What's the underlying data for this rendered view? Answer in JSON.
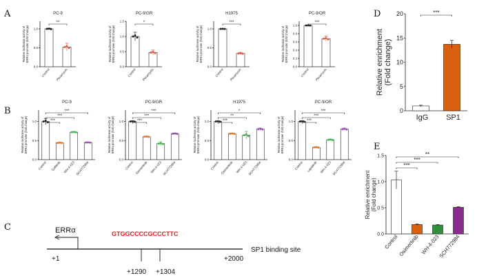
{
  "panel_labels": {
    "a": "A",
    "b": "B",
    "c": "C",
    "d": "D",
    "e": "E"
  },
  "chart_data": [
    {
      "id": "A1",
      "type": "bar",
      "title": "PC-9",
      "ylabel": [
        "Relative luciferase activity of",
        "ERRα promoter (fold change)"
      ],
      "ylim": [
        0,
        1.2
      ],
      "yticks": [
        "0.0",
        "0.5",
        "1.0"
      ],
      "categories": [
        "Control",
        "Plicamycin"
      ],
      "values": [
        1.0,
        0.52
      ],
      "errors": [
        0.02,
        0.1
      ],
      "colors": [
        "#222222",
        "#e05a4a"
      ],
      "sig": [
        "**"
      ]
    },
    {
      "id": "A2",
      "type": "bar",
      "title": "PC-9/GR",
      "ylabel": [
        "Relative luciferase activity of",
        "ERRα promoter (fold change)"
      ],
      "ylim": [
        0,
        1.5
      ],
      "yticks": [
        "0.0",
        "0.5",
        "1.0",
        "1.5"
      ],
      "categories": [
        "Control",
        "Plicamycin"
      ],
      "values": [
        1.0,
        0.47
      ],
      "errors": [
        0.14,
        0.08
      ],
      "colors": [
        "#222222",
        "#e05a4a"
      ],
      "sig": [
        "*"
      ]
    },
    {
      "id": "A3",
      "type": "bar",
      "title": "H1975",
      "ylabel": [
        "Relative luciferase activity of",
        "ERRα promoter (fold change)"
      ],
      "ylim": [
        0,
        1.2
      ],
      "yticks": [
        "0.0",
        "0.5",
        "1.0"
      ],
      "categories": [
        "Control",
        "Plicamycin"
      ],
      "values": [
        1.0,
        0.35
      ],
      "errors": [
        0.01,
        0.03
      ],
      "colors": [
        "#222222",
        "#e05a4a"
      ],
      "sig": [
        "***"
      ]
    },
    {
      "id": "A4",
      "type": "bar",
      "title": "PC-9/OR",
      "ylabel": [
        "Relative luciferase activity of",
        "ERRα promoter (fold change)"
      ],
      "ylim": [
        0,
        1.1
      ],
      "yticks": [
        "0.0",
        "0.2",
        "0.4",
        "0.6",
        "0.8",
        "1.0"
      ],
      "categories": [
        "Control",
        "Plicamycin"
      ],
      "values": [
        1.0,
        0.68
      ],
      "errors": [
        0.01,
        0.06
      ],
      "colors": [
        "#222222",
        "#e05a4a"
      ],
      "sig": [
        "***"
      ]
    },
    {
      "id": "B1",
      "type": "bar",
      "title": "PC-9",
      "ylabel": [
        "Relative luciferase activity of",
        "ERRα promoter (fold change)"
      ],
      "ylim": [
        0,
        1.3
      ],
      "yticks": [
        "0.0",
        "0.5",
        "1.0"
      ],
      "categories": [
        "Control",
        "Gefitinib",
        "WH-4-023",
        "SCH772984"
      ],
      "values": [
        1.0,
        0.44,
        0.72,
        0.45
      ],
      "errors": [
        0.08,
        0.02,
        0.02,
        0.01
      ],
      "colors": [
        "#222222",
        "#e8772e",
        "#3db84a",
        "#9b4fb5"
      ],
      "sig": [
        "***",
        "***",
        "***"
      ]
    },
    {
      "id": "B2",
      "type": "bar",
      "title": "PC-9/GR",
      "ylabel": [
        "Relative luciferase activity of",
        "ERRα promoter (fold change)"
      ],
      "ylim": [
        0,
        1.3
      ],
      "yticks": [
        "0.0",
        "0.5",
        "1.0"
      ],
      "categories": [
        "Control",
        "Osimertinib",
        "WH-4-023",
        "SCH772984"
      ],
      "values": [
        1.0,
        0.6,
        0.42,
        0.68
      ],
      "errors": [
        0.02,
        0.02,
        0.05,
        0.02
      ],
      "colors": [
        "#222222",
        "#e8772e",
        "#3db84a",
        "#9b4fb5"
      ],
      "sig": [
        "***",
        "***",
        "***"
      ]
    },
    {
      "id": "B3",
      "type": "bar",
      "title": "H1975",
      "ylabel": [
        "Relative luciferase activity of",
        "ERRα promoter (fold change)"
      ],
      "ylim": [
        0,
        1.3
      ],
      "yticks": [
        "0.0",
        "0.5",
        "1.0"
      ],
      "categories": [
        "Control",
        "Osimertinib",
        "WH-4-023",
        "SCH772984"
      ],
      "values": [
        1.0,
        0.68,
        0.64,
        0.8
      ],
      "errors": [
        0.02,
        0.02,
        0.1,
        0.03
      ],
      "colors": [
        "#222222",
        "#e8772e",
        "#3db84a",
        "#9b4fb5"
      ],
      "sig": [
        "***",
        "**",
        "*"
      ]
    },
    {
      "id": "B4",
      "type": "bar",
      "title": "PC-9/OR",
      "ylabel": [
        "Relative luciferase activity of",
        "ERRα promoter (fold change)"
      ],
      "ylim": [
        0,
        1.3
      ],
      "yticks": [
        "0.0",
        "0.5",
        "1.0"
      ],
      "categories": [
        "Control",
        "Lapatinib",
        "WH-4-023",
        "SCH772984"
      ],
      "values": [
        1.0,
        0.32,
        0.52,
        0.8
      ],
      "errors": [
        0.02,
        0.02,
        0.02,
        0.03
      ],
      "colors": [
        "#222222",
        "#e8772e",
        "#3db84a",
        "#9b4fb5"
      ],
      "sig": [
        "***",
        "***",
        "***"
      ]
    },
    {
      "id": "D",
      "type": "bar",
      "title": "",
      "ylabel": [
        "Relative enrichment",
        "(Fold change)"
      ],
      "ylim": [
        0,
        20
      ],
      "yticks": [
        "0",
        "5",
        "10",
        "15",
        "20"
      ],
      "categories": [
        "IgG",
        "SP1"
      ],
      "values": [
        1.0,
        13.7
      ],
      "errors": [
        0.15,
        0.8
      ],
      "colors": [
        "#ffffff",
        "#d9600e"
      ],
      "sig": [
        "***"
      ]
    },
    {
      "id": "E",
      "type": "bar",
      "title": "",
      "ylabel": [
        "Relative enrichment",
        "(Fold change)"
      ],
      "ylim": [
        0,
        1.5
      ],
      "yticks": [
        "0.0",
        "0.5",
        "1.0",
        "1.5"
      ],
      "categories": [
        "Control",
        "Osimertinib",
        "WH-4-023",
        "SCH772984"
      ],
      "values": [
        1.03,
        0.18,
        0.17,
        0.51
      ],
      "errors": [
        0.17,
        0.01,
        0.01,
        0.01
      ],
      "colors": [
        "#ffffff",
        "#d9600e",
        "#2f8f3a",
        "#8b2a8f"
      ],
      "sig": [
        "***",
        "***",
        "**"
      ]
    }
  ],
  "diagram": {
    "gene": "ERRα",
    "sequence": "GTGGCCCCGCCCTTC",
    "site_label": "SP1 binding site",
    "pos_start": "+1",
    "pos_end": "+2000",
    "site_start": "+1290",
    "site_end": "+1304",
    "sequence_color": "#e02020"
  }
}
